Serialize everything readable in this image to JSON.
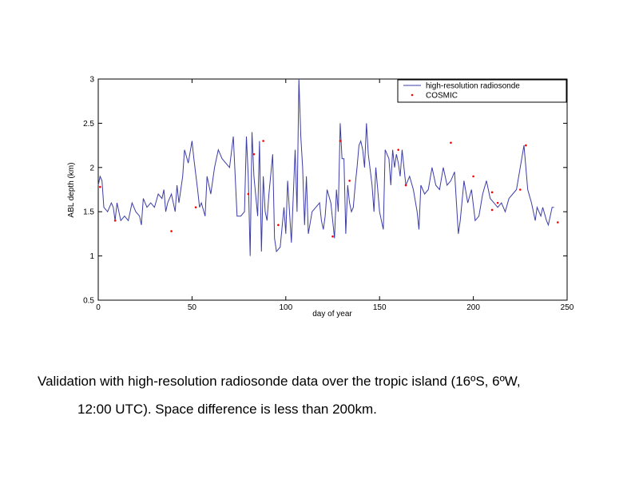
{
  "chart_data": {
    "type": "line",
    "xlabel": "day of year",
    "ylabel": "ABL depth (km)",
    "xlim": [
      0,
      250
    ],
    "xticks": [
      0,
      50,
      100,
      150,
      200,
      250
    ],
    "ylim": [
      0.5,
      3
    ],
    "yticks": [
      0.5,
      1,
      1.5,
      2,
      2.5,
      3
    ],
    "legend": "upper right",
    "series": [
      {
        "name": "high-resolution radiosonde",
        "type": "line",
        "color": "#3c3ca8",
        "x": [
          0,
          1,
          2,
          3,
          5,
          7,
          8,
          9,
          10,
          12,
          14,
          16,
          18,
          20,
          22,
          23,
          24,
          26,
          28,
          30,
          32,
          34,
          35,
          36,
          37,
          39,
          41,
          42,
          43,
          45,
          46,
          48,
          50,
          51,
          53,
          54,
          55,
          57,
          58,
          60,
          62,
          64,
          66,
          68,
          70,
          72,
          74,
          76,
          78,
          79,
          80,
          81,
          82,
          83,
          85,
          86,
          87,
          88,
          89,
          90,
          91,
          93,
          94,
          95,
          97,
          99,
          100,
          101,
          103,
          105,
          106,
          107,
          108,
          109,
          110,
          111,
          112,
          114,
          116,
          118,
          119,
          120,
          121,
          122,
          124,
          125,
          126,
          127,
          128,
          129,
          130,
          131,
          132,
          133,
          134,
          135,
          136,
          137,
          138,
          139,
          140,
          141,
          142,
          143,
          144,
          146,
          147,
          148,
          149,
          150,
          151,
          152,
          153,
          155,
          156,
          157,
          158,
          159,
          160,
          161,
          162,
          164,
          166,
          168,
          170,
          171,
          172,
          174,
          176,
          178,
          180,
          182,
          184,
          186,
          188,
          190,
          192,
          193,
          195,
          197,
          199,
          201,
          203,
          205,
          207,
          209,
          211,
          213,
          215,
          217,
          219,
          221,
          223,
          225,
          227,
          229,
          231,
          233,
          234,
          236,
          237,
          239,
          240,
          242,
          243
        ],
        "values": [
          1.8,
          1.9,
          1.85,
          1.55,
          1.5,
          1.6,
          1.55,
          1.4,
          1.6,
          1.4,
          1.45,
          1.4,
          1.6,
          1.5,
          1.45,
          1.35,
          1.65,
          1.55,
          1.6,
          1.55,
          1.7,
          1.65,
          1.75,
          1.5,
          1.6,
          1.7,
          1.5,
          1.8,
          1.6,
          1.9,
          2.2,
          2.05,
          2.3,
          2.1,
          1.75,
          1.55,
          1.6,
          1.45,
          1.9,
          1.7,
          2.0,
          2.2,
          2.1,
          2.05,
          2.0,
          2.35,
          1.45,
          1.45,
          1.5,
          2.35,
          1.9,
          1.0,
          2.4,
          1.9,
          1.45,
          2.3,
          1.05,
          1.9,
          1.5,
          1.4,
          1.7,
          2.15,
          1.2,
          1.05,
          1.1,
          1.55,
          1.25,
          1.85,
          1.15,
          2.2,
          1.5,
          3.0,
          2.35,
          2.0,
          1.35,
          1.9,
          1.25,
          1.5,
          1.55,
          1.6,
          1.4,
          1.3,
          1.45,
          1.75,
          1.6,
          1.4,
          1.2,
          1.75,
          1.5,
          2.5,
          2.1,
          2.1,
          1.25,
          1.8,
          1.6,
          1.5,
          1.55,
          1.8,
          2.0,
          2.25,
          2.3,
          2.2,
          2.0,
          2.5,
          2.15,
          1.8,
          1.5,
          2.0,
          1.75,
          1.5,
          1.4,
          1.3,
          2.2,
          2.1,
          1.8,
          2.2,
          2.0,
          2.15,
          2.05,
          1.9,
          2.2,
          1.8,
          1.9,
          1.75,
          1.5,
          1.3,
          1.8,
          1.7,
          1.75,
          2.0,
          1.8,
          1.75,
          2.0,
          1.8,
          1.85,
          1.95,
          1.25,
          1.4,
          1.85,
          1.6,
          1.75,
          1.4,
          1.45,
          1.7,
          1.85,
          1.65,
          1.6,
          1.55,
          1.6,
          1.5,
          1.65,
          1.7,
          1.75,
          2.0,
          2.25,
          1.75,
          1.6,
          1.4,
          1.55,
          1.45,
          1.55,
          1.4,
          1.35,
          1.55,
          1.55
        ]
      },
      {
        "name": "COSMIC",
        "type": "scatter",
        "color": "#ff0000",
        "x": [
          1,
          9,
          39,
          52,
          80,
          83,
          88,
          96,
          125,
          129,
          134,
          160,
          164,
          188,
          200,
          210,
          210,
          213,
          225,
          228,
          245
        ],
        "values": [
          1.78,
          1.4,
          1.28,
          1.55,
          1.7,
          2.15,
          2.3,
          1.35,
          1.22,
          2.3,
          1.85,
          2.2,
          1.8,
          2.28,
          1.9,
          1.52,
          1.72,
          1.6,
          1.75,
          2.25,
          1.38
        ]
      }
    ]
  },
  "caption": [
    "Validation with high-resolution radiosonde data over the tropic island (16ºS, 6ºW,",
    "12:00 UTC). Space difference is less than 200km."
  ]
}
